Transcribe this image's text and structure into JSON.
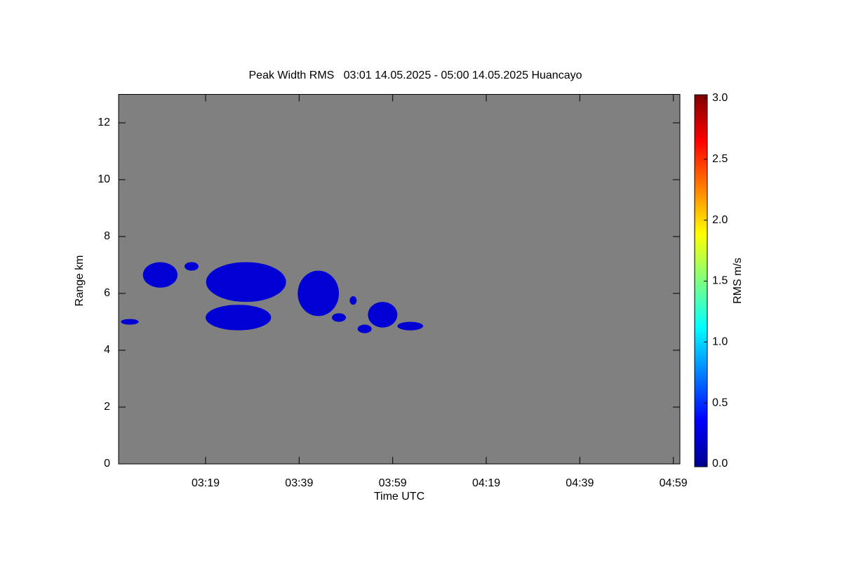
{
  "chart_data": {
    "type": "heatmap",
    "title": "Peak Width RMS   03:01 14.05.2025 - 05:00 14.05.2025 Huancayo",
    "x_label": "Time UTC",
    "y_label": "Range km",
    "colorbar_label": "RMS m/s",
    "xlim": [
      180.4,
      300.4
    ],
    "ylim": [
      0,
      13
    ],
    "clim": [
      0,
      3
    ],
    "xticks": [
      {
        "value": 199,
        "label": "03:19"
      },
      {
        "value": 219,
        "label": "03:39"
      },
      {
        "value": 239,
        "label": "03:59"
      },
      {
        "value": 259,
        "label": "04:19"
      },
      {
        "value": 279,
        "label": "04:39"
      },
      {
        "value": 299,
        "label": "04:59"
      }
    ],
    "yticks": [
      0,
      2,
      4,
      6,
      8,
      10,
      12
    ],
    "cticks": [
      {
        "value": 0,
        "label": "0.0"
      },
      {
        "value": 0.5,
        "label": "0.5"
      },
      {
        "value": 1,
        "label": "1.0"
      },
      {
        "value": 1.5,
        "label": "1.5"
      },
      {
        "value": 2,
        "label": "2.0"
      },
      {
        "value": 2.5,
        "label": "2.5"
      },
      {
        "value": 3,
        "label": "3.0"
      }
    ],
    "background": "#808080",
    "cells": [
      {
        "t0": 180.9,
        "t1": 184.7,
        "r0": 4.9,
        "r1": 5.1,
        "value": 0.25
      },
      {
        "t0": 185.6,
        "t1": 193.0,
        "r0": 6.2,
        "r1": 7.1,
        "value": 0.25
      },
      {
        "t0": 194.5,
        "t1": 197.5,
        "r0": 6.8,
        "r1": 7.1,
        "value": 0.25
      },
      {
        "t0": 199.1,
        "t1": 216.2,
        "r0": 5.7,
        "r1": 7.1,
        "value": 0.25
      },
      {
        "t0": 199.0,
        "t1": 213.0,
        "r0": 4.7,
        "r1": 5.6,
        "value": 0.25
      },
      {
        "t0": 218.7,
        "t1": 227.5,
        "r0": 5.2,
        "r1": 6.8,
        "value": 0.25
      },
      {
        "t0": 226.0,
        "t1": 229.0,
        "r0": 5.0,
        "r1": 5.3,
        "value": 0.25
      },
      {
        "t0": 229.8,
        "t1": 231.3,
        "r0": 5.6,
        "r1": 5.9,
        "value": 0.25
      },
      {
        "t0": 231.5,
        "t1": 234.5,
        "r0": 4.6,
        "r1": 4.9,
        "value": 0.25
      },
      {
        "t0": 233.7,
        "t1": 240.0,
        "r0": 4.8,
        "r1": 5.7,
        "value": 0.25
      },
      {
        "t0": 240.0,
        "t1": 245.5,
        "r0": 4.7,
        "r1": 5.0,
        "value": 0.25
      }
    ]
  }
}
